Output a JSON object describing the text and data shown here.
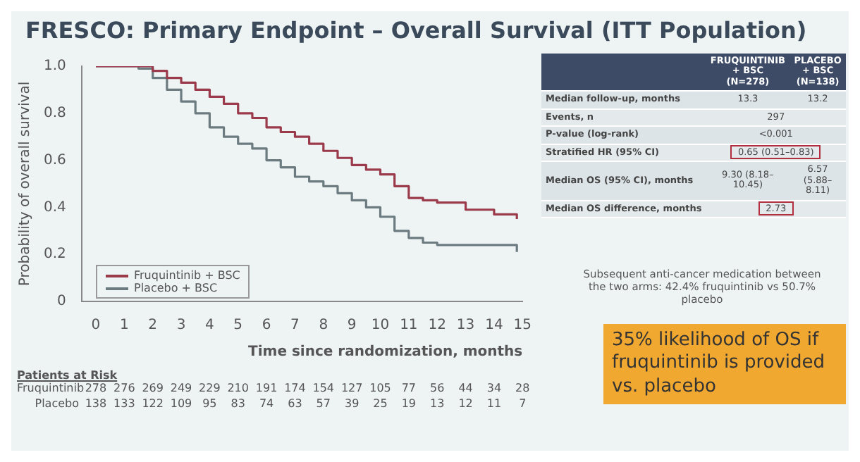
{
  "chart_data": {
    "type": "step",
    "title": "FRESCO: Primary Endpoint – Overall Survival (ITT Population)",
    "xlabel": "Time since randomization, months",
    "ylabel": "Probability of overall survival",
    "x": [
      0,
      1,
      1.5,
      2,
      2.5,
      3,
      3.5,
      4,
      4.5,
      5,
      5.5,
      6,
      6.5,
      7,
      7.5,
      8,
      8.5,
      9,
      9.5,
      10,
      10.5,
      11,
      11.5,
      12,
      13,
      14,
      14.8
    ],
    "series": [
      {
        "name": "Fruquintinib + BSC",
        "color": "#9b3a4a",
        "values": [
          1,
          1,
          1,
          0.98,
          0.95,
          0.93,
          0.9,
          0.87,
          0.84,
          0.8,
          0.78,
          0.74,
          0.72,
          0.7,
          0.67,
          0.64,
          0.61,
          0.58,
          0.56,
          0.54,
          0.49,
          0.44,
          0.43,
          0.42,
          0.39,
          0.37,
          0.35
        ]
      },
      {
        "name": "Placebo + BSC",
        "color": "#6b7b80",
        "values": [
          1,
          1,
          0.99,
          0.95,
          0.9,
          0.85,
          0.8,
          0.74,
          0.7,
          0.67,
          0.65,
          0.6,
          0.57,
          0.53,
          0.51,
          0.49,
          0.46,
          0.43,
          0.4,
          0.36,
          0.3,
          0.27,
          0.25,
          0.24,
          0.24,
          0.24,
          0.21
        ]
      }
    ],
    "xlim": [
      -0.5,
      15
    ],
    "xticks": [
      0,
      1,
      2,
      3,
      4,
      5,
      6,
      7,
      8,
      9,
      10,
      11,
      12,
      13,
      14,
      15
    ],
    "ylim": [
      0,
      1
    ],
    "yticks": [
      0,
      0.2,
      0.4,
      0.6,
      0.8,
      {
        "value": 1,
        "label": "1.0"
      }
    ],
    "grid": false,
    "legend": "bottom left",
    "marker": "none",
    "line_style": "solid",
    "annotations": [
      "FRUQUINTINIB + BSC (N=278)",
      "PLACEBO + BSC (N=138)",
      "Median follow-up, months",
      "13.3",
      "13.2",
      "Events, n",
      "297",
      "P-value (log-rank)",
      "<0.001",
      "Stratified HR (95% CI)",
      "0.65 (0.51–0.83)",
      "Median OS (95% CI), months",
      "9.30 (8.18–10.45)",
      "6.57 (5.88–8.11)",
      "Median OS difference, months",
      "2.73",
      "Subsequent anti-cancer medication between the two arms: 42.4% fruquintinib vs 50.7% placebo",
      "35%  likelihood of OS if fruquintinib is provided vs. placebo",
      "Patients at Risk",
      "Fruquintinib",
      "278 276 269 249 229 210 191 174 154 127 105 77 56 44 34 28",
      "Placebo",
      "138 133 122 109 95 83 74 63 57 39 25 19 13 12 11 7"
    ]
  }
}
